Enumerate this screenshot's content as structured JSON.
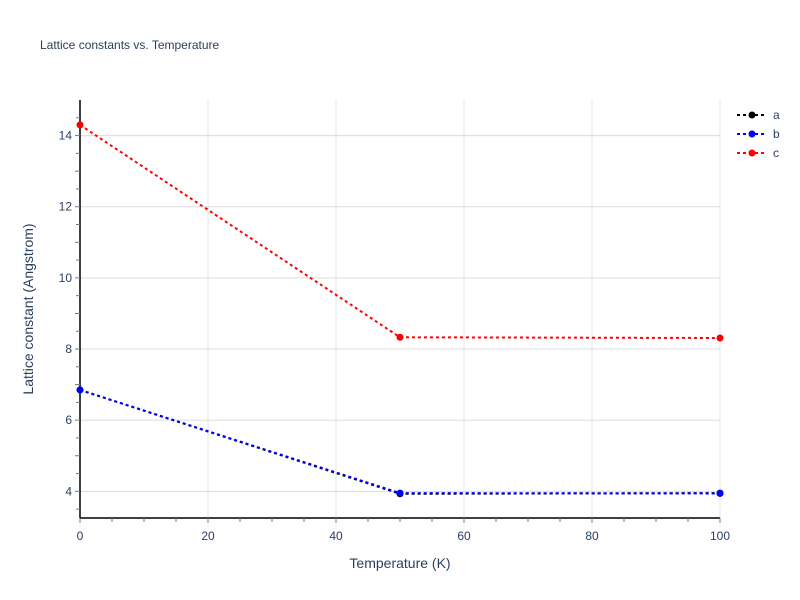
{
  "chart_data": {
    "type": "line",
    "title": "Lattice constants vs. Temperature",
    "xlabel": "Temperature (K)",
    "ylabel": "Lattice constant (Angstrom)",
    "xlim": [
      0,
      100
    ],
    "ylim": [
      3.25,
      15
    ],
    "x_ticks": [
      "0",
      "20",
      "40",
      "60",
      "80",
      "100"
    ],
    "y_ticks": [
      "4",
      "6",
      "8",
      "10",
      "12",
      "14"
    ],
    "grid": true,
    "legend_position": "top-right",
    "x": [
      0,
      50,
      100
    ],
    "series": [
      {
        "name": "a",
        "color": "#000000",
        "values": [
          6.85,
          3.93,
          3.95
        ]
      },
      {
        "name": "b",
        "color": "#0000ff",
        "values": [
          6.85,
          3.95,
          3.94
        ]
      },
      {
        "name": "c",
        "color": "#ff0000",
        "values": [
          14.3,
          8.33,
          8.31
        ]
      }
    ]
  }
}
